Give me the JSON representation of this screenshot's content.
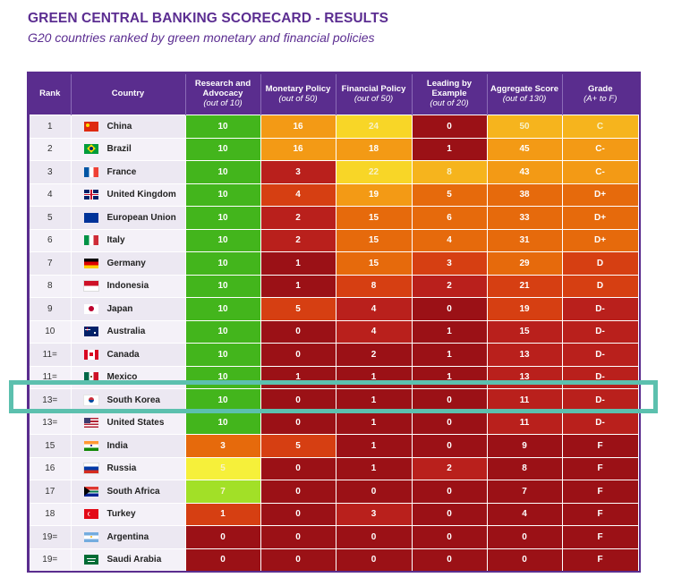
{
  "chart_data": {
    "type": "table",
    "title": "GREEN CENTRAL BANKING SCORECARD - RESULTS",
    "subtitle": "G20 countries ranked by green monetary and financial policies",
    "columns": [
      {
        "label": "Rank",
        "sub": ""
      },
      {
        "label": "Country",
        "sub": ""
      },
      {
        "label": "Research and Advocacy",
        "sub": "(out of 10)"
      },
      {
        "label": "Monetary Policy",
        "sub": "(out of 50)"
      },
      {
        "label": "Financial Policy",
        "sub": "(out of 50)"
      },
      {
        "label": "Leading by Example",
        "sub": "(out of 20)"
      },
      {
        "label": "Aggregate Score",
        "sub": "(out of 130)"
      },
      {
        "label": "Grade",
        "sub": "(A+ to F)"
      }
    ],
    "rows": [
      {
        "rank": "1",
        "country": "China",
        "flag": "china-flag",
        "research": 10,
        "monetary": 16,
        "financial": 24,
        "leading": 0,
        "aggregate": 50,
        "grade": "C"
      },
      {
        "rank": "2",
        "country": "Brazil",
        "flag": "brazil-flag",
        "research": 10,
        "monetary": 16,
        "financial": 18,
        "leading": 1,
        "aggregate": 45,
        "grade": "C-"
      },
      {
        "rank": "3",
        "country": "France",
        "flag": "france-flag",
        "research": 10,
        "monetary": 3,
        "financial": 22,
        "leading": 8,
        "aggregate": 43,
        "grade": "C-"
      },
      {
        "rank": "4",
        "country": "United Kingdom",
        "flag": "uk-flag",
        "research": 10,
        "monetary": 4,
        "financial": 19,
        "leading": 5,
        "aggregate": 38,
        "grade": "D+"
      },
      {
        "rank": "5",
        "country": "European Union",
        "flag": "eu-flag",
        "research": 10,
        "monetary": 2,
        "financial": 15,
        "leading": 6,
        "aggregate": 33,
        "grade": "D+"
      },
      {
        "rank": "6",
        "country": "Italy",
        "flag": "italy-flag",
        "research": 10,
        "monetary": 2,
        "financial": 15,
        "leading": 4,
        "aggregate": 31,
        "grade": "D+"
      },
      {
        "rank": "7",
        "country": "Germany",
        "flag": "germany-flag",
        "research": 10,
        "monetary": 1,
        "financial": 15,
        "leading": 3,
        "aggregate": 29,
        "grade": "D"
      },
      {
        "rank": "8",
        "country": "Indonesia",
        "flag": "indonesia-flag",
        "research": 10,
        "monetary": 1,
        "financial": 8,
        "leading": 2,
        "aggregate": 21,
        "grade": "D"
      },
      {
        "rank": "9",
        "country": "Japan",
        "flag": "japan-flag",
        "research": 10,
        "monetary": 5,
        "financial": 4,
        "leading": 0,
        "aggregate": 19,
        "grade": "D-"
      },
      {
        "rank": "10",
        "country": "Australia",
        "flag": "australia-flag",
        "research": 10,
        "monetary": 0,
        "financial": 4,
        "leading": 1,
        "aggregate": 15,
        "grade": "D-"
      },
      {
        "rank": "11=",
        "country": "Canada",
        "flag": "canada-flag",
        "research": 10,
        "monetary": 0,
        "financial": 2,
        "leading": 1,
        "aggregate": 13,
        "grade": "D-"
      },
      {
        "rank": "11=",
        "country": "Mexico",
        "flag": "mexico-flag",
        "research": 10,
        "monetary": 1,
        "financial": 1,
        "leading": 1,
        "aggregate": 13,
        "grade": "D-"
      },
      {
        "rank": "13=",
        "country": "South Korea",
        "flag": "south-korea-flag",
        "research": 10,
        "monetary": 0,
        "financial": 1,
        "leading": 0,
        "aggregate": 11,
        "grade": "D-"
      },
      {
        "rank": "13=",
        "country": "United States",
        "flag": "us-flag",
        "research": 10,
        "monetary": 0,
        "financial": 1,
        "leading": 0,
        "aggregate": 11,
        "grade": "D-"
      },
      {
        "rank": "15",
        "country": "India",
        "flag": "india-flag",
        "research": 3,
        "monetary": 5,
        "financial": 1,
        "leading": 0,
        "aggregate": 9,
        "grade": "F"
      },
      {
        "rank": "16",
        "country": "Russia",
        "flag": "russia-flag",
        "research": 5,
        "monetary": 0,
        "financial": 1,
        "leading": 2,
        "aggregate": 8,
        "grade": "F"
      },
      {
        "rank": "17",
        "country": "South Africa",
        "flag": "south-africa-flag",
        "research": 7,
        "monetary": 0,
        "financial": 0,
        "leading": 0,
        "aggregate": 7,
        "grade": "F"
      },
      {
        "rank": "18",
        "country": "Turkey",
        "flag": "turkey-flag",
        "research": 1,
        "monetary": 0,
        "financial": 3,
        "leading": 0,
        "aggregate": 4,
        "grade": "F"
      },
      {
        "rank": "19=",
        "country": "Argentina",
        "flag": "argentina-flag",
        "research": 0,
        "monetary": 0,
        "financial": 0,
        "leading": 0,
        "aggregate": 0,
        "grade": "F"
      },
      {
        "rank": "19=",
        "country": "Saudi Arabia",
        "flag": "saudi-arabia-flag",
        "research": 0,
        "monetary": 0,
        "financial": 0,
        "leading": 0,
        "aggregate": 0,
        "grade": "F"
      }
    ],
    "highlighted_row": "South Korea",
    "colors": {
      "header_bg": "#5a2d8e",
      "title": "#5b2d91",
      "highlight_border": "#5cc0ae",
      "dark_red": "#9b1116",
      "red": "#b9201c",
      "red_orange": "#d63f12",
      "orange_deep": "#e66a0c",
      "orange": "#f39a15",
      "yellow_orange": "#f6b41d",
      "yellow": "#f8d627",
      "light_yellow": "#f6f03a",
      "lime": "#a2e027",
      "green": "#43b51c"
    }
  }
}
